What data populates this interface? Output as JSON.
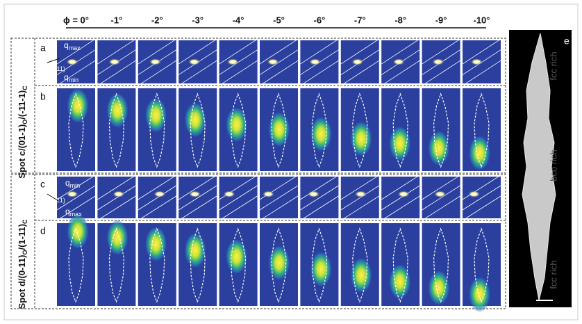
{
  "header": {
    "angles": [
      "ϕ = 0°",
      "-1°",
      "-2°",
      "-3°",
      "-4°",
      "-5°",
      "-6°",
      "-7°",
      "-8°",
      "-9°",
      "-10°"
    ]
  },
  "panel_letters": [
    "a",
    "b",
    "c",
    "d",
    "e"
  ],
  "row_labels": [
    {
      "main": "Spot c/(01-1)",
      "sub1": "O",
      "rest": "/(-11-1)",
      "sub2": "C"
    },
    {
      "main": "Spot d/(0-11)",
      "sub1": "O",
      "rest": "/(1-11)",
      "sub2": "C"
    }
  ],
  "inset_labels": {
    "a": [
      {
        "q": "q",
        "sub": "max"
      },
      {
        "q": "q",
        "sub": "fcc(111)"
      },
      {
        "q": "q",
        "sub": "min"
      }
    ],
    "c": [
      {
        "q": "q",
        "sub": "min"
      },
      {
        "q": "q",
        "sub": "fcc(111)"
      },
      {
        "q": "q",
        "sub": "max"
      }
    ]
  },
  "crystal_labels": [
    "fcc rich",
    "bco rich",
    "fcc rich"
  ]
}
